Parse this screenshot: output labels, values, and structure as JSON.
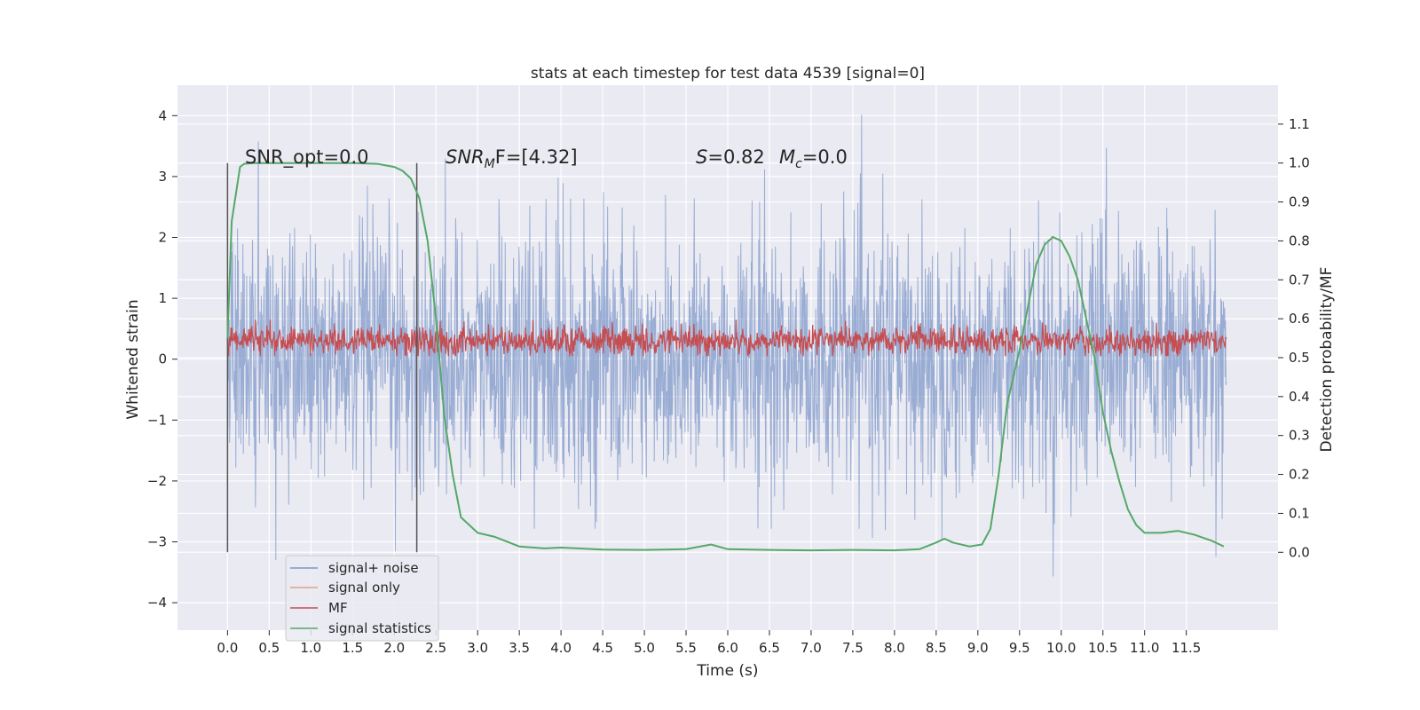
{
  "chart_data": {
    "type": "line",
    "title": "stats at each timestep for test data 4539 [signal=0]",
    "xlabel": "Time (s)",
    "ylabel_left": "Whitened strain",
    "ylabel_right": "Detection probability/MF",
    "xlim": [
      -0.6,
      12.6
    ],
    "ylim_left": [
      -4.45,
      4.5
    ],
    "ylim_right": [
      -0.2,
      1.2
    ],
    "x_ticks": [
      "0.0",
      "0.5",
      "1.0",
      "1.5",
      "2.0",
      "2.5",
      "3.0",
      "3.5",
      "4.0",
      "4.5",
      "5.0",
      "5.5",
      "6.0",
      "6.5",
      "7.0",
      "7.5",
      "8.0",
      "8.5",
      "9.0",
      "9.5",
      "10.0",
      "10.5",
      "11.0",
      "11.5"
    ],
    "y_left_ticks": [
      "4",
      "3",
      "2",
      "1",
      "0",
      "−1",
      "−2",
      "−3",
      "−4"
    ],
    "y_right_ticks": [
      "1.1",
      "1.0",
      "0.9",
      "0.8",
      "0.7",
      "0.6",
      "0.5",
      "0.4",
      "0.3",
      "0.2",
      "0.1",
      "0.0"
    ],
    "grid": true,
    "legend_placement": "lower-left",
    "colors": {
      "signal_noise": "#7d97c8",
      "signal_only": "#e1a187",
      "mf": "#c44e52",
      "stats": "#55a868",
      "background": "#eaeaf2",
      "markers": "#555555"
    },
    "annotations": {
      "snr_opt": "SNR_opt=0.0",
      "snr_mf_main": "SNR",
      "snr_mf_sub": "M",
      "snr_mf_rest": "F=[4.32]",
      "s_var": "S",
      "s_val": "=0.82",
      "mc_var": "M",
      "mc_sub": "c",
      "mc_val": "=0.0"
    },
    "vertical_markers_x": [
      0.0,
      2.27
    ],
    "series": [
      {
        "name": "signal+ noise",
        "x_range": [
          0,
          11.98
        ],
        "approx_abs_max": 4.1
      },
      {
        "name": "signal only"
      },
      {
        "name": "MF",
        "x_range": [
          0,
          11.98
        ],
        "y_range": [
          0.05,
          0.65
        ]
      },
      {
        "name": "signal statistics",
        "axis": "right",
        "x": [
          0.0,
          0.05,
          0.1,
          0.15,
          0.2,
          0.3,
          0.5,
          1.0,
          1.5,
          1.8,
          2.0,
          2.1,
          2.2,
          2.3,
          2.4,
          2.5,
          2.6,
          2.7,
          2.8,
          3.0,
          3.2,
          3.5,
          3.8,
          4.0,
          4.2,
          4.5,
          5.0,
          5.5,
          5.8,
          6.0,
          6.5,
          7.0,
          7.5,
          8.0,
          8.3,
          8.5,
          8.6,
          8.7,
          8.9,
          9.05,
          9.15,
          9.25,
          9.35,
          9.5,
          9.6,
          9.7,
          9.8,
          9.9,
          10.0,
          10.1,
          10.2,
          10.3,
          10.4,
          10.5,
          10.6,
          10.7,
          10.8,
          10.9,
          11.0,
          11.2,
          11.4,
          11.6,
          11.8,
          11.95
        ],
        "y": [
          0.55,
          0.85,
          0.92,
          0.99,
          0.998,
          1.0,
          1.0,
          1.0,
          1.0,
          0.998,
          0.99,
          0.98,
          0.96,
          0.91,
          0.8,
          0.6,
          0.35,
          0.2,
          0.09,
          0.05,
          0.04,
          0.015,
          0.01,
          0.012,
          0.01,
          0.007,
          0.006,
          0.008,
          0.02,
          0.008,
          0.006,
          0.005,
          0.006,
          0.005,
          0.008,
          0.025,
          0.035,
          0.025,
          0.015,
          0.02,
          0.06,
          0.2,
          0.38,
          0.52,
          0.63,
          0.74,
          0.79,
          0.81,
          0.8,
          0.76,
          0.7,
          0.6,
          0.5,
          0.36,
          0.26,
          0.18,
          0.11,
          0.07,
          0.05,
          0.05,
          0.055,
          0.045,
          0.03,
          0.015
        ]
      }
    ]
  }
}
